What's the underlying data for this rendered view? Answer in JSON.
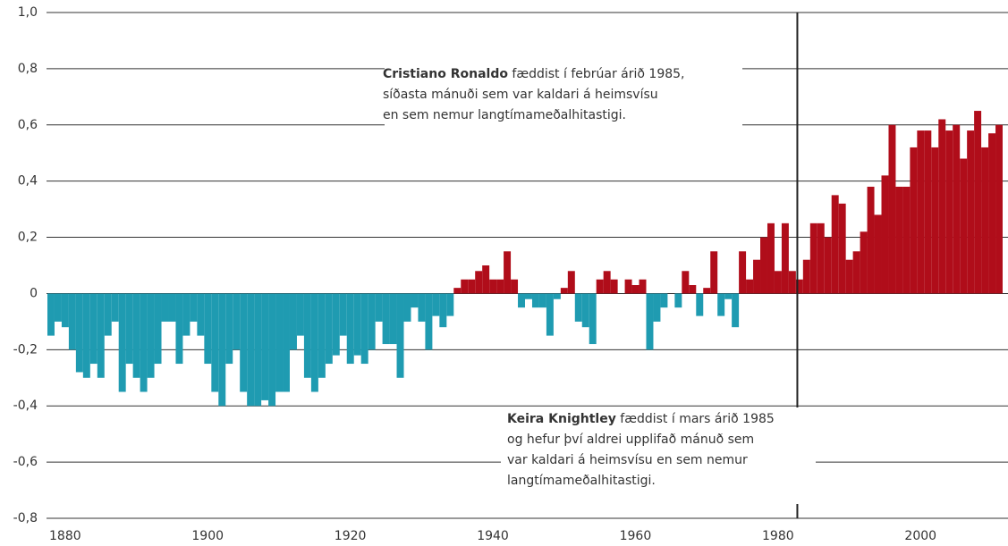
{
  "chart_data": {
    "type": "bar",
    "x": [
      1880,
      1881,
      1882,
      1883,
      1884,
      1885,
      1886,
      1887,
      1888,
      1889,
      1890,
      1891,
      1892,
      1893,
      1894,
      1895,
      1896,
      1897,
      1898,
      1899,
      1900,
      1901,
      1902,
      1903,
      1904,
      1905,
      1906,
      1907,
      1908,
      1909,
      1910,
      1911,
      1912,
      1913,
      1914,
      1915,
      1916,
      1917,
      1918,
      1919,
      1920,
      1921,
      1922,
      1923,
      1924,
      1925,
      1926,
      1927,
      1928,
      1929,
      1930,
      1931,
      1932,
      1933,
      1934,
      1935,
      1936,
      1937,
      1938,
      1939,
      1940,
      1941,
      1942,
      1943,
      1944,
      1945,
      1946,
      1947,
      1948,
      1949,
      1950,
      1951,
      1952,
      1953,
      1954,
      1955,
      1956,
      1957,
      1958,
      1959,
      1960,
      1961,
      1962,
      1963,
      1964,
      1965,
      1966,
      1967,
      1968,
      1969,
      1970,
      1971,
      1972,
      1973,
      1974,
      1975,
      1976,
      1977,
      1978,
      1979,
      1980,
      1981,
      1982,
      1983,
      1984,
      1985,
      1986,
      1987,
      1988,
      1989,
      1990,
      1991,
      1992,
      1993,
      1994,
      1995,
      1996,
      1997,
      1998,
      1999,
      2000,
      2001,
      2002,
      2003,
      2004,
      2005,
      2006,
      2007,
      2008,
      2009,
      2010,
      2011,
      2012,
      2013
    ],
    "values": [
      -0.15,
      -0.1,
      -0.12,
      -0.2,
      -0.28,
      -0.3,
      -0.25,
      -0.3,
      -0.15,
      -0.1,
      -0.35,
      -0.25,
      -0.3,
      -0.35,
      -0.3,
      -0.25,
      -0.1,
      -0.1,
      -0.25,
      -0.15,
      -0.1,
      -0.15,
      -0.25,
      -0.35,
      -0.4,
      -0.25,
      -0.2,
      -0.35,
      -0.4,
      -0.4,
      -0.38,
      -0.4,
      -0.35,
      -0.35,
      -0.2,
      -0.15,
      -0.3,
      -0.35,
      -0.3,
      -0.25,
      -0.22,
      -0.15,
      -0.25,
      -0.22,
      -0.25,
      -0.2,
      -0.1,
      -0.18,
      -0.18,
      -0.3,
      -0.1,
      -0.05,
      -0.1,
      -0.2,
      -0.08,
      -0.12,
      -0.08,
      0.02,
      0.05,
      0.05,
      0.08,
      0.1,
      0.05,
      0.05,
      0.15,
      0.05,
      -0.05,
      -0.02,
      -0.05,
      -0.05,
      -0.15,
      -0.02,
      0.02,
      0.08,
      -0.1,
      -0.12,
      -0.18,
      0.05,
      0.08,
      0.05,
      0.0,
      0.05,
      0.03,
      0.05,
      -0.2,
      -0.1,
      -0.05,
      0.0,
      -0.05,
      0.08,
      0.03,
      -0.08,
      0.02,
      0.15,
      -0.08,
      -0.02,
      -0.12,
      0.15,
      0.05,
      0.12,
      0.2,
      0.25,
      0.08,
      0.25,
      0.08,
      0.05,
      0.12,
      0.25,
      0.25,
      0.2,
      0.35,
      0.32,
      0.12,
      0.15,
      0.22,
      0.38,
      0.28,
      0.42,
      0.6,
      0.38,
      0.38,
      0.52,
      0.58,
      0.58,
      0.52,
      0.62,
      0.58,
      0.6,
      0.48,
      0.58,
      0.65,
      0.52,
      0.57,
      0.6
    ],
    "positive_color": "#b00d1a",
    "negative_color": "#1f9bb1",
    "xlim": [
      1880,
      2014
    ],
    "xticks": [
      1880,
      1900,
      1920,
      1940,
      1960,
      1980,
      2000
    ],
    "ylim": [
      -0.8,
      1.0
    ],
    "yticks": [
      {
        "value": -0.8,
        "label": "-0,8"
      },
      {
        "value": -0.6,
        "label": "-0,6"
      },
      {
        "value": -0.4,
        "label": "-0,4"
      },
      {
        "value": -0.2,
        "label": "-0,2"
      },
      0,
      {
        "value": 0.2,
        "label": "0,2"
      },
      {
        "value": 0.4,
        "label": "0,4"
      },
      {
        "value": 0.6,
        "label": "0,6"
      },
      {
        "value": 0.8,
        "label": "0,8"
      },
      {
        "value": 1.0,
        "label": "1,0"
      }
    ],
    "grid": true,
    "reference_line": {
      "x": 1985.2
    },
    "annotations": [
      {
        "name": "Cristiano Ronaldo",
        "lines": [
          " fæddist í febrúar árið 1985,",
          "síðasta mánuði sem var kaldari á heimsvísu",
          "en sem nemur langtímameðalhitastigi."
        ]
      },
      {
        "name": "Keira Knightley",
        "lines": [
          " fæddist í mars árið 1985",
          "og hefur því aldrei upplifað mánuð sem",
          "var kaldari á heimsvísu en sem nemur",
          "langtímameðalhitastigi."
        ]
      }
    ]
  }
}
